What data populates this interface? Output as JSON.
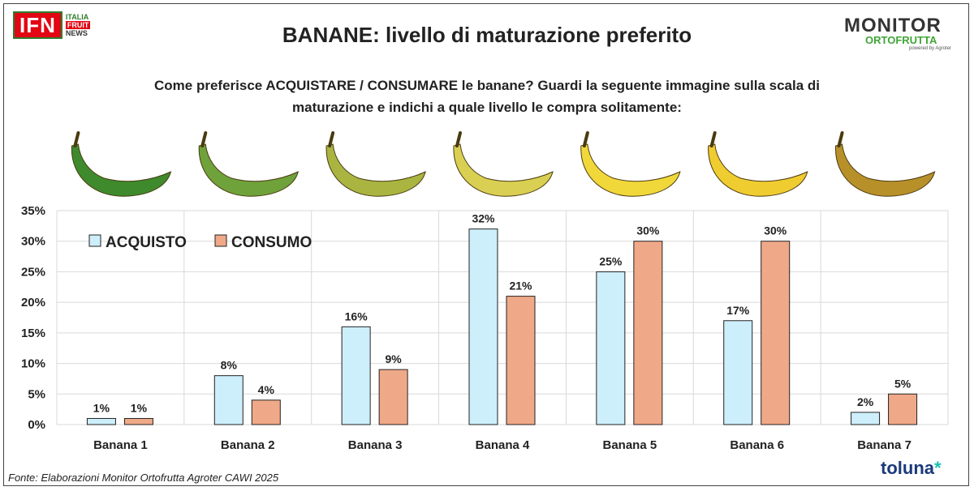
{
  "header": {
    "ifn_logo": "IFN",
    "ifn_lines": [
      "ITALIA",
      "FRUIT",
      "NEWS"
    ],
    "title": "BANANE: livello di maturazione preferito",
    "monitor_logo": "MONITOR",
    "monitor_sub": "ORTOFRUTTA",
    "monitor_powered": "powered by Agroter"
  },
  "question": {
    "line1": "Come preferisce ACQUISTARE / CONSUMARE le banane? Guardi la seguente immagine sulla scala di",
    "line2": "maturazione e indichi a quale livello le compra solitamente:"
  },
  "footer": {
    "source": "Fonte: Elaborazioni Monitor Ortofrutta Agroter CAWI 2025",
    "brand": "toluna",
    "brand_mark": "*"
  },
  "colors": {
    "acquisto": "#cdeefb",
    "consumo": "#f0a988",
    "bar_stroke": "#222222",
    "grid": "#d9d9d9",
    "banana_ripeness": [
      "#3e8a2c",
      "#6fa23a",
      "#a9b540",
      "#d9cf52",
      "#f1d83a",
      "#efcc30",
      "#b8902a"
    ]
  },
  "chart_data": {
    "type": "bar",
    "categories": [
      "Banana 1",
      "Banana 2",
      "Banana 3",
      "Banana 4",
      "Banana 5",
      "Banana 6",
      "Banana 7"
    ],
    "series": [
      {
        "name": "ACQUISTO",
        "values": [
          1,
          8,
          16,
          32,
          25,
          17,
          2
        ],
        "labels": [
          "1%",
          "8%",
          "16%",
          "32%",
          "25%",
          "17%",
          "2%"
        ]
      },
      {
        "name": "CONSUMO",
        "values": [
          1,
          4,
          9,
          21,
          30,
          30,
          5
        ],
        "labels": [
          "1%",
          "4%",
          "9%",
          "21%",
          "30%",
          "30%",
          "5%"
        ]
      }
    ],
    "ylim": [
      0,
      35
    ],
    "yticks": [
      "0%",
      "5%",
      "10%",
      "15%",
      "20%",
      "25%",
      "30%",
      "35%"
    ],
    "legend": "top-left",
    "grid": true
  }
}
